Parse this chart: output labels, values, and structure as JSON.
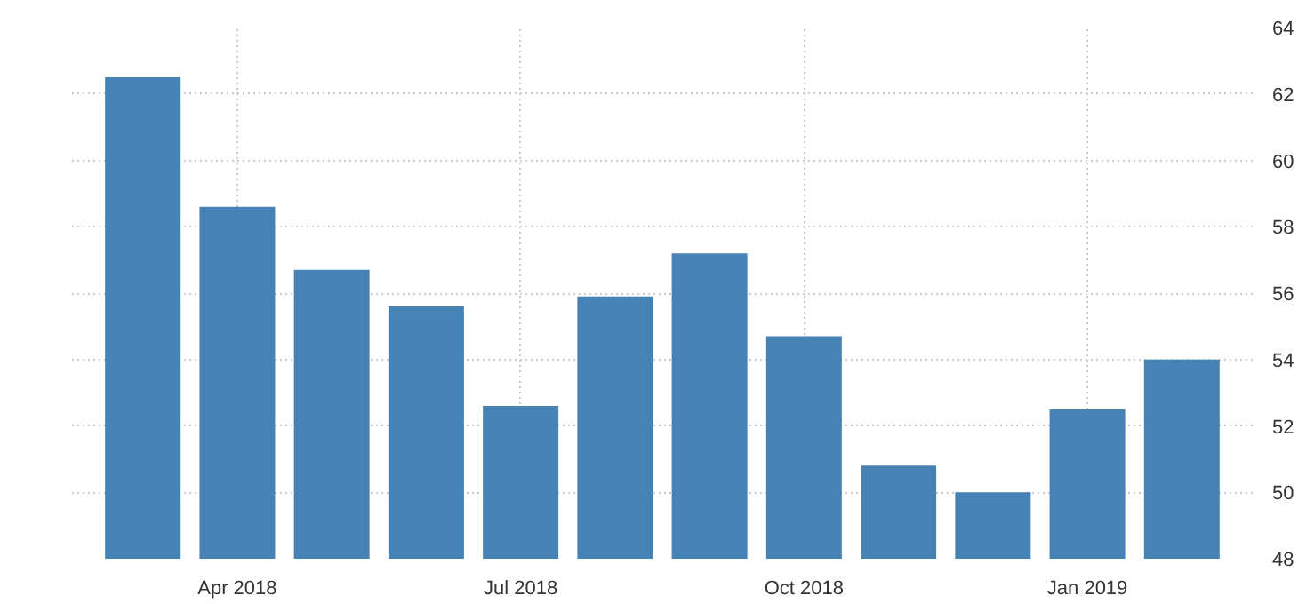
{
  "chart_data": {
    "type": "bar",
    "categories": [
      null,
      "Apr 2018",
      null,
      null,
      "Jul 2018",
      null,
      null,
      "Oct 2018",
      null,
      null,
      "Jan 2019",
      null
    ],
    "values": [
      62.5,
      58.6,
      56.7,
      55.6,
      52.6,
      55.9,
      57.2,
      54.7,
      50.8,
      50.0,
      52.5,
      54.0
    ],
    "color": "#4682b4",
    "ylim": [
      48,
      64
    ],
    "yticks": [
      48,
      50,
      52,
      54,
      56,
      58,
      60,
      62,
      64
    ],
    "grid": true
  }
}
